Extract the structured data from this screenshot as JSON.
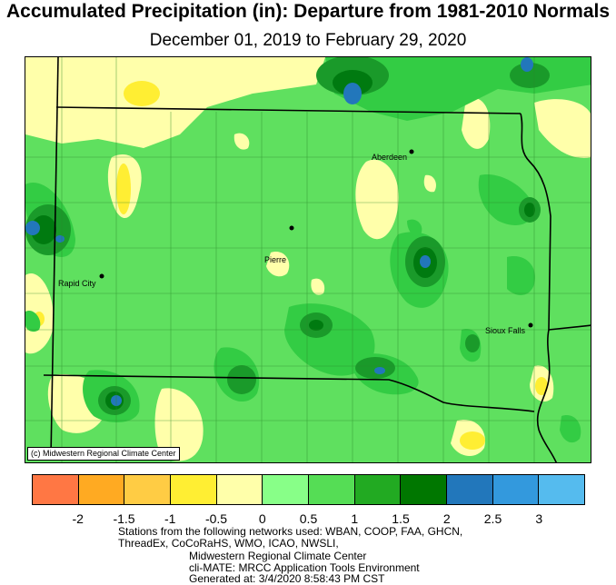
{
  "title": "Accumulated Precipitation (in): Departure from 1981-2010 Normals",
  "subtitle": "December 01, 2019 to February 29, 2020",
  "credit": "(c) Midwestern Regional Climate Center",
  "cities": [
    {
      "name": "Aberdeen"
    },
    {
      "name": "Pierre"
    },
    {
      "name": "Rapid City"
    },
    {
      "name": "Sioux Falls"
    }
  ],
  "legend": {
    "colors": [
      "#ff7744",
      "#ffaa22",
      "#ffcc44",
      "#ffee33",
      "#ffffaa",
      "#88ff88",
      "#55dd55",
      "#22aa22",
      "#007700",
      "#2277bb",
      "#3399dd",
      "#55bbee"
    ],
    "ticks": [
      "-2",
      "-1.5",
      "-1",
      "-0.5",
      "0",
      "0.5",
      "1",
      "1.5",
      "2",
      "2.5",
      "3"
    ]
  },
  "footer": {
    "line1": "Stations from the following networks used: WBAN, COOP, FAA, GHCN,",
    "line2": "ThreadEx, CoCoRaHS, WMO, ICAO, NWSLI,",
    "line3": "Midwestern Regional Climate Center",
    "line4": "cli-MATE: MRCC Application Tools Environment",
    "line5": "Generated at: 3/4/2020 8:58:43 PM CST"
  }
}
